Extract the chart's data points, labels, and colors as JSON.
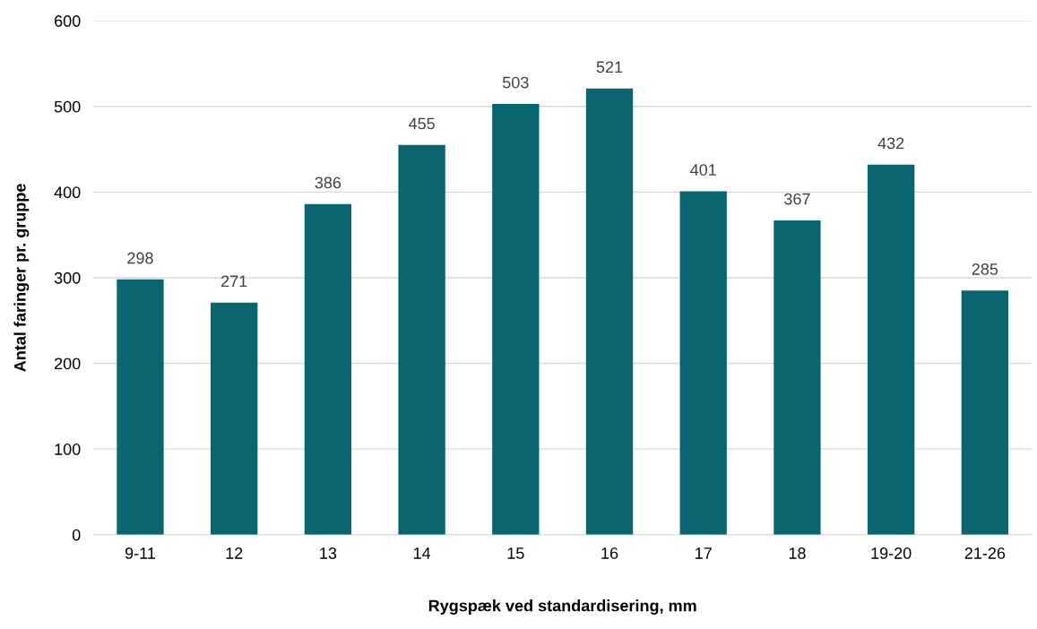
{
  "chart_data": {
    "type": "bar",
    "xlabel": "Rygspæk ved standardisering, mm",
    "ylabel": "Antal faringer pr. gruppe",
    "categories": [
      "9-11",
      "12",
      "13",
      "14",
      "15",
      "16",
      "17",
      "18",
      "19-20",
      "21-26"
    ],
    "values": [
      298,
      271,
      386,
      455,
      503,
      521,
      401,
      367,
      432,
      285
    ],
    "color": "#0a6570",
    "ylim": [
      0,
      600
    ],
    "yticks": [
      0,
      100,
      200,
      300,
      400,
      500,
      600
    ],
    "grid": "y",
    "data_labels": true,
    "legend": false
  }
}
